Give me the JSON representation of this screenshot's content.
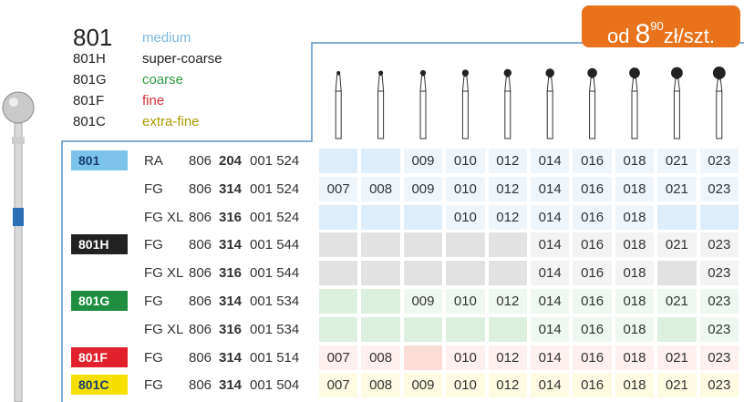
{
  "price": {
    "prefix": "od",
    "main": "8",
    "sup": "90",
    "unit": "zł/szt."
  },
  "legend": [
    {
      "code": "801",
      "grade": "medium"
    },
    {
      "code": "801H",
      "grade": "super-coarse"
    },
    {
      "code": "801G",
      "grade": "coarse"
    },
    {
      "code": "801F",
      "grade": "fine"
    },
    {
      "code": "801C",
      "grade": "extra-fine"
    }
  ],
  "rows": [
    {
      "badge": "801",
      "shank": "RA",
      "cat": [
        "806",
        "204",
        "001 524"
      ],
      "sizes": [
        null,
        null,
        "009",
        "010",
        "012",
        "014",
        "016",
        "018",
        "021",
        "023"
      ]
    },
    {
      "shank": "FG",
      "cat": [
        "806",
        "314",
        "001 524"
      ],
      "sizes": [
        "007",
        "008",
        "009",
        "010",
        "012",
        "014",
        "016",
        "018",
        "021",
        "023"
      ]
    },
    {
      "shank": "FG XL",
      "cat": [
        "806",
        "316",
        "001 524"
      ],
      "sizes": [
        null,
        null,
        null,
        "010",
        "012",
        "014",
        "016",
        "018",
        null,
        null
      ]
    },
    {
      "badge": "801H",
      "shank": "FG",
      "cat": [
        "806",
        "314",
        "001 544"
      ],
      "sizes": [
        null,
        null,
        null,
        null,
        null,
        "014",
        "016",
        "018",
        "021",
        "023"
      ]
    },
    {
      "shank": "FG XL",
      "cat": [
        "806",
        "316",
        "001 544"
      ],
      "sizes": [
        null,
        null,
        null,
        null,
        null,
        "014",
        "016",
        "018",
        null,
        "023"
      ]
    },
    {
      "badge": "801G",
      "shank": "FG",
      "cat": [
        "806",
        "314",
        "001 534"
      ],
      "sizes": [
        null,
        null,
        "009",
        "010",
        "012",
        "014",
        "016",
        "018",
        "021",
        "023"
      ]
    },
    {
      "shank": "FG XL",
      "cat": [
        "806",
        "316",
        "001 534"
      ],
      "sizes": [
        null,
        null,
        null,
        null,
        null,
        "014",
        "016",
        "018",
        null,
        "023"
      ]
    },
    {
      "badge": "801F",
      "shank": "FG",
      "cat": [
        "806",
        "314",
        "001 514"
      ],
      "sizes": [
        "007",
        "008",
        null,
        "010",
        "012",
        "014",
        "016",
        "018",
        "021",
        "023"
      ]
    },
    {
      "badge": "801C",
      "shank": "FG",
      "cat": [
        "806",
        "314",
        "001 504"
      ],
      "sizes": [
        "007",
        "008",
        "009",
        "010",
        "012",
        "014",
        "016",
        "018",
        "021",
        "023"
      ]
    }
  ]
}
